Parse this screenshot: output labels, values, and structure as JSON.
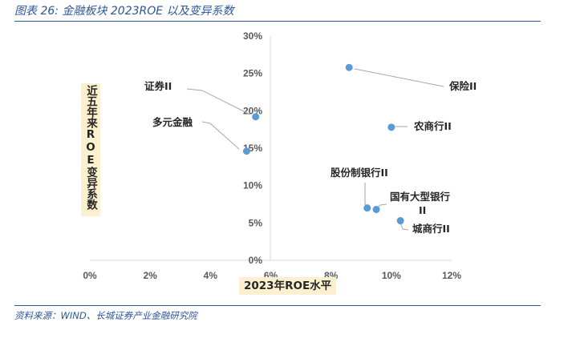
{
  "figure_title": "图表 26:  金融板块 2023ROE 以及变异系数",
  "source": "资料来源：WIND、长城证券产业金融研究院",
  "chart_data": {
    "type": "scatter",
    "title": "",
    "xlabel": "2023年ROE水平",
    "ylabel": "近五年来ROE变异系数",
    "xlim": [
      0,
      12
    ],
    "ylim": [
      0,
      30
    ],
    "x_ticks": [
      "0%",
      "2%",
      "4%",
      "6%",
      "8%",
      "10%",
      "12%"
    ],
    "y_ticks": [
      "0%",
      "5%",
      "10%",
      "15%",
      "20%",
      "25%",
      "30%"
    ],
    "grid": false,
    "legend": "none",
    "marker_color": "#5b9bd5",
    "points": [
      {
        "label": "保险II",
        "x": 8.6,
        "y": 25.8
      },
      {
        "label": "证券II",
        "x": 5.5,
        "y": 19.2
      },
      {
        "label": "多元金融",
        "x": 5.2,
        "y": 14.6
      },
      {
        "label": "农商行II",
        "x": 10.0,
        "y": 17.8
      },
      {
        "label": "股份制银行II",
        "x": 9.2,
        "y": 7.0
      },
      {
        "label": "国有大型银行II",
        "x": 9.5,
        "y": 6.8
      },
      {
        "label": "城商行II",
        "x": 10.3,
        "y": 5.3
      }
    ]
  }
}
